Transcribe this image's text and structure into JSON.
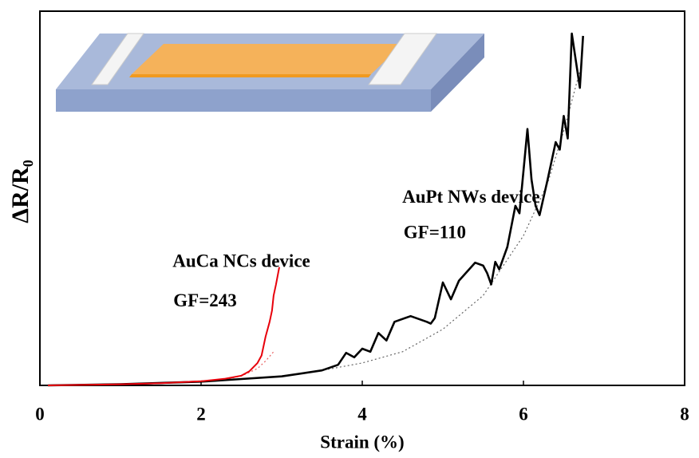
{
  "chart_data": {
    "type": "line",
    "xlabel": "Strain (%)",
    "ylabel": "ΔR/R₀",
    "xlim": [
      0,
      8
    ],
    "xticks": [
      0,
      2,
      4,
      6,
      8
    ],
    "ylim": [
      0,
      100
    ],
    "annotations": [
      {
        "text": "AuPt NWs device",
        "x": 5.35,
        "y": 50
      },
      {
        "text": "GF=110",
        "x": 4.9,
        "y": 40.5
      },
      {
        "text": "AuCa NCs device",
        "x": 2.5,
        "y": 32.8
      },
      {
        "text": "GF=243",
        "x": 2.05,
        "y": 22.2
      }
    ],
    "series": [
      {
        "color": "#000000",
        "style": "solid",
        "x": [
          0.1,
          1,
          2,
          2.5,
          3,
          3.5,
          3.7,
          3.8,
          3.9,
          4.0,
          4.1,
          4.2,
          4.3,
          4.4,
          4.6,
          4.8,
          4.85,
          4.9,
          5.0,
          5.1,
          5.2,
          5.4,
          5.5,
          5.55,
          5.6,
          5.65,
          5.7,
          5.8,
          5.9,
          5.95,
          6.05,
          6.1,
          6.15,
          6.2,
          6.3,
          6.4,
          6.45,
          6.5,
          6.55,
          6.6,
          6.7,
          6.74
        ],
        "values": [
          0,
          0.3,
          1,
          1.7,
          2.4,
          4,
          5.5,
          8.7,
          7.5,
          9.8,
          9,
          14,
          12,
          17,
          18.5,
          17,
          16.5,
          18,
          27.5,
          23,
          28,
          32.8,
          32,
          30,
          27,
          33,
          31,
          37,
          48,
          46,
          68.5,
          55,
          48,
          45.5,
          55,
          65,
          63,
          72,
          66,
          94,
          79.5,
          93.4
        ]
      },
      {
        "color": "#e8000b",
        "style": "solid",
        "x": [
          0.1,
          1,
          1.5,
          2,
          2.3,
          2.5,
          2.6,
          2.7,
          2.75,
          2.8,
          2.85,
          2.88,
          2.9,
          2.93,
          2.97
        ],
        "values": [
          0,
          0.3,
          0.6,
          1.1,
          1.8,
          2.6,
          3.8,
          6,
          8,
          13,
          17,
          20,
          24,
          27,
          31.6
        ]
      },
      {
        "color": "#666666",
        "style": "dotted",
        "x": [
          2,
          3,
          3.5,
          4,
          4.5,
          5,
          5.5,
          6,
          6.3,
          6.5,
          6.7
        ],
        "values": [
          1,
          2.5,
          4,
          6,
          9,
          15,
          24,
          40,
          54,
          68,
          84
        ]
      },
      {
        "color": "#e86060",
        "style": "dotted",
        "x": [
          2,
          2.3,
          2.5,
          2.7,
          2.8,
          2.9
        ],
        "values": [
          1,
          1.6,
          2.5,
          4.5,
          6.5,
          9
        ]
      }
    ]
  }
}
